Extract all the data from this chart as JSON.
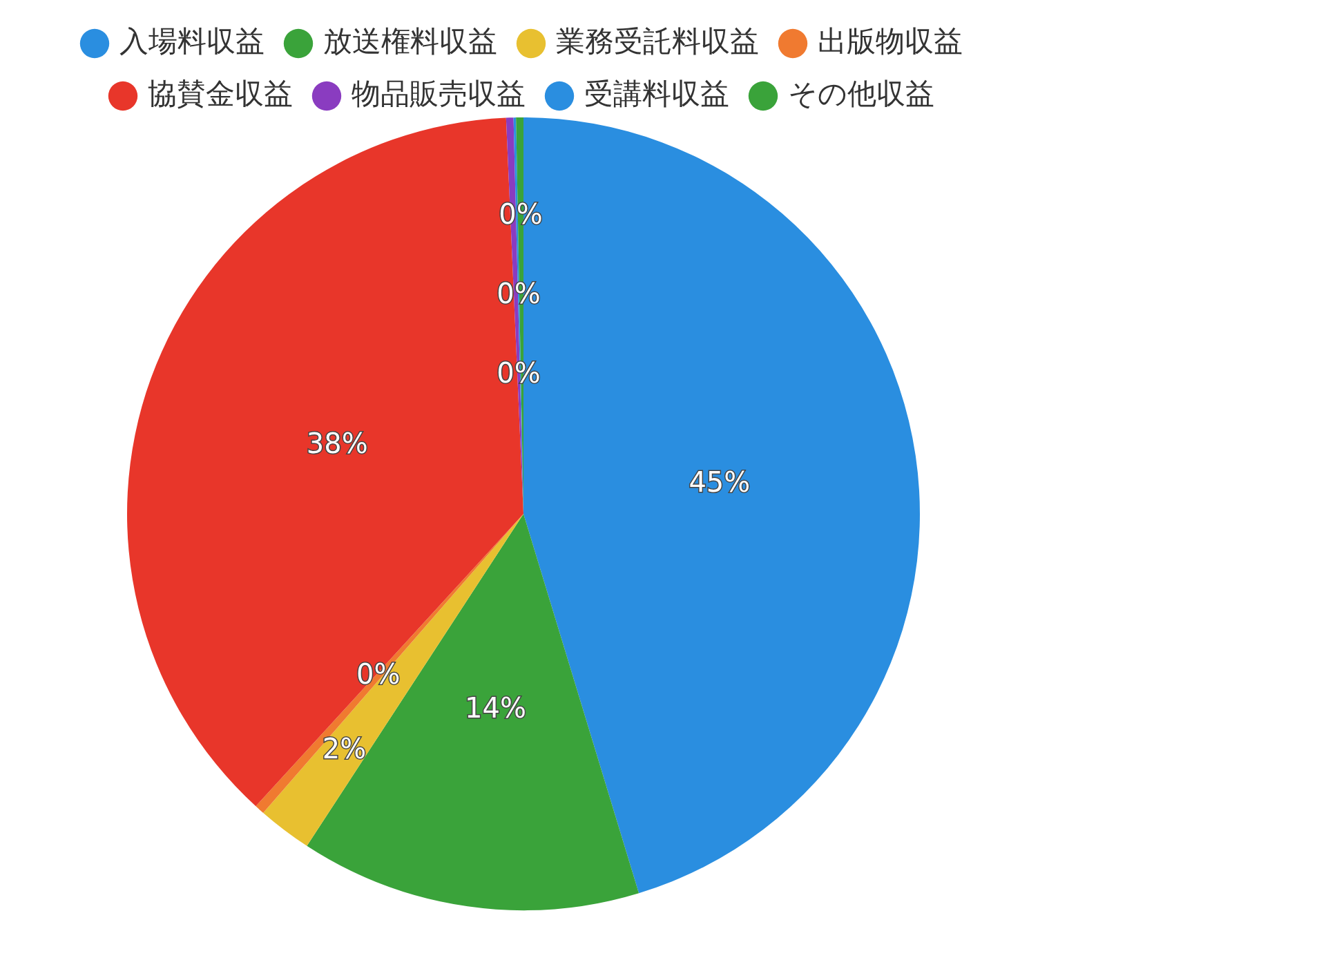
{
  "chart_data": {
    "type": "pie",
    "categories": [
      "入場料収益",
      "放送権料収益",
      "業務受託料収益",
      "出版物収益",
      "協賛金収益",
      "物品販売収益",
      "受講料収益",
      "その他収益"
    ],
    "values": [
      45.3,
      13.9,
      2.2,
      0.4,
      37.5,
      0.3,
      0.1,
      0.3
    ],
    "value_labels": [
      "45%",
      "14%",
      "2%",
      "0%",
      "38%",
      "0%",
      "0%",
      "0%"
    ],
    "colors": [
      "#2a8ee0",
      "#3aa33a",
      "#e8c030",
      "#f07a30",
      "#e8362a",
      "#8a3cc0",
      "#2a8ee0",
      "#3aa33a"
    ],
    "legend": "top"
  }
}
